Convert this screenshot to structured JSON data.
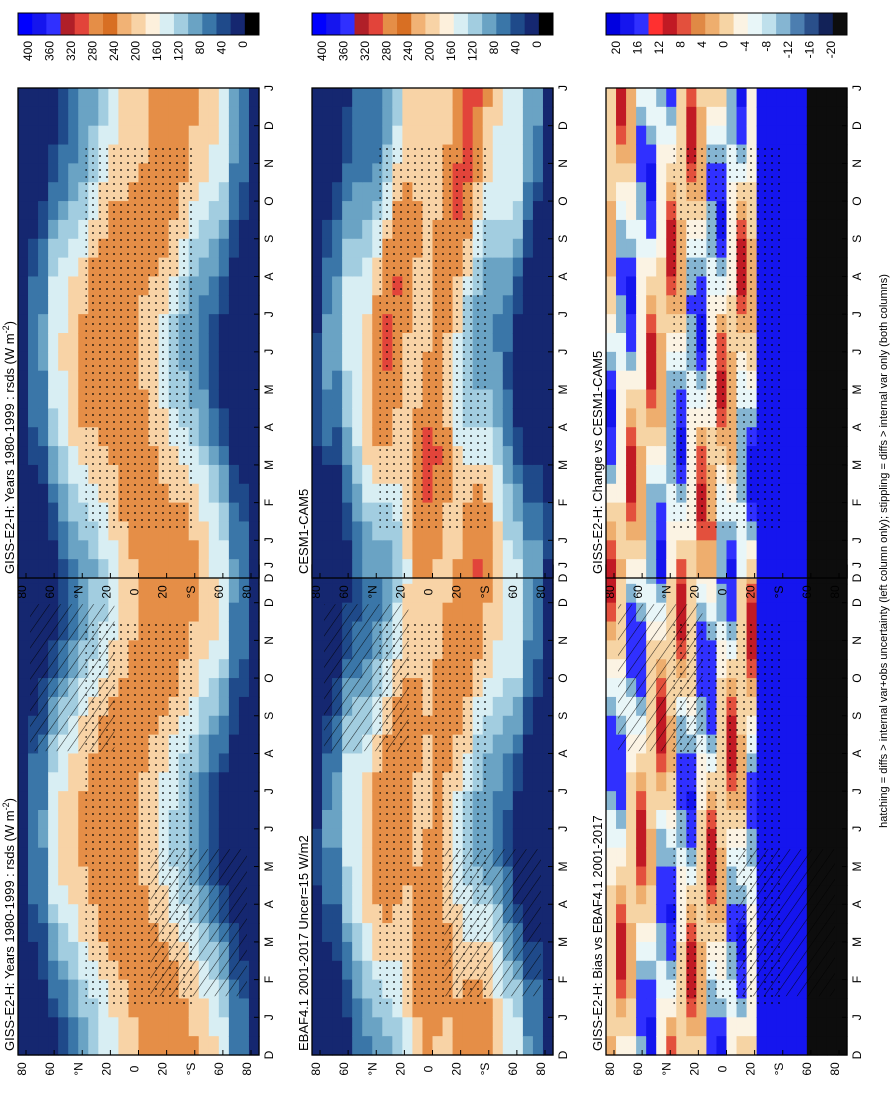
{
  "figure": {
    "footnote": "hatching = diffs > internal var+obs uncertainty (left column only); stippling = diffs > internal var only (both columns)",
    "colors": {
      "abs_scale": [
        "#f7f7f7",
        "#152770",
        "#1f4a8a",
        "#3a76a8",
        "#6aa3c4",
        "#a2cde0",
        "#d8eef3",
        "#fdf0dc",
        "#f8d3a6",
        "#f1b275",
        "#e58e47",
        "#d86f23",
        "#c9541b",
        "#e2443a",
        "#b01f28",
        "#7e0d1a",
        "#0000ff",
        "#2b2bff",
        "#1f1fcc",
        "#0d0dee"
      ],
      "diff_scale": [
        "#0d0d0d",
        "#122258",
        "#2a4f8a",
        "#4c7eb0",
        "#85b5d2",
        "#bfe0ec",
        "#e8f6f8",
        "#fbf3e3",
        "#f6d4a4",
        "#eeae6e",
        "#e08945",
        "#e3503d",
        "#c11a24",
        "#ff3030",
        "#3030ff",
        "#1515ee",
        "#0000e0"
      ]
    }
  },
  "chart_data": [
    {
      "panel": "GISS-E2-H obs-comparison column",
      "type": "heatmap",
      "title": "GISS-E2-H: Years 1980-1999 : rsds (W m-2)",
      "title_display": "GISS-E2-H: Years 1980-1999 : rsds (W m",
      "title_sup": "-2",
      "x_ticks": [
        "D",
        "J",
        "F",
        "M",
        "A",
        "M",
        "J",
        "J",
        "A",
        "S",
        "O",
        "N",
        "D",
        "J"
      ],
      "y_ticks": [
        "80",
        "60",
        "°N",
        "20",
        "0",
        "20",
        "°S",
        "60",
        "80"
      ],
      "colorbar_ticks": [
        "400",
        "360",
        "320",
        "280",
        "240",
        "200",
        "160",
        "120",
        "80",
        "40",
        "0"
      ],
      "field": "absolute",
      "hatching": true
    },
    {
      "panel": "GISS-E2-H model-comparison column",
      "type": "heatmap",
      "title": "GISS-E2-H: Years 1980-1999 : rsds (W m-2)",
      "title_display": "GISS-E2-H: Years 1980-1999 : rsds (W m",
      "title_sup": "-2",
      "x_ticks": [
        "D",
        "J",
        "F",
        "M",
        "A",
        "M",
        "J",
        "J",
        "A",
        "S",
        "O",
        "N",
        "D",
        "J"
      ],
      "y_ticks": [
        "80",
        "60",
        "°N",
        "20",
        "0",
        "20",
        "°S",
        "60",
        "80"
      ],
      "colorbar_ticks": [
        "400",
        "360",
        "320",
        "280",
        "240",
        "200",
        "160",
        "120",
        "80",
        "40",
        "0"
      ],
      "field": "absolute",
      "hatching": false
    },
    {
      "panel": "EBAF4.1 observations",
      "type": "heatmap",
      "title": "EBAF4.1 2001-2017 Uncer=15 W/m2",
      "x_ticks": [
        "D",
        "J",
        "F",
        "M",
        "A",
        "M",
        "J",
        "J",
        "A",
        "S",
        "O",
        "N",
        "D",
        "J"
      ],
      "y_ticks": [
        "80",
        "60",
        "°N",
        "20",
        "0",
        "20",
        "°S",
        "60",
        "80"
      ],
      "colorbar_ticks": [
        "400",
        "360",
        "320",
        "280",
        "240",
        "200",
        "160",
        "120",
        "80",
        "40",
        "0"
      ],
      "field": "absolute",
      "hatching": true
    },
    {
      "panel": "CESM1-CAM5",
      "type": "heatmap",
      "title": "CESM1-CAM5",
      "x_ticks": [
        "D",
        "J",
        "F",
        "M",
        "A",
        "M",
        "J",
        "J",
        "A",
        "S",
        "O",
        "N",
        "D",
        "J"
      ],
      "y_ticks": [
        "80",
        "60",
        "°N",
        "20",
        "0",
        "20",
        "°S",
        "60",
        "80"
      ],
      "colorbar_ticks": [
        "400",
        "360",
        "320",
        "280",
        "240",
        "200",
        "160",
        "120",
        "80",
        "40",
        "0"
      ],
      "field": "absolute",
      "hatching": false
    },
    {
      "panel": "Bias vs EBAF",
      "type": "heatmap",
      "title": "GISS-E2-H: Bias vs EBAF4.1 2001-2017",
      "x_ticks": [
        "D",
        "J",
        "F",
        "M",
        "A",
        "M",
        "J",
        "J",
        "A",
        "S",
        "O",
        "N",
        "D",
        "J"
      ],
      "y_ticks": [
        "80",
        "60",
        "°N",
        "20",
        "0",
        "20",
        "°S",
        "60",
        "80"
      ],
      "colorbar_ticks": [
        "20",
        "16",
        "12",
        "8",
        "4",
        "0",
        "-4",
        "-8",
        "-12",
        "-16",
        "-20"
      ],
      "field": "bias",
      "hatching": true
    },
    {
      "panel": "Change vs CESM",
      "type": "heatmap",
      "title": "GISS-E2-H: Change vs CESM1-CAM5",
      "x_ticks": [
        "D",
        "J",
        "F",
        "M",
        "A",
        "M",
        "J",
        "J",
        "A",
        "S",
        "O",
        "N",
        "D",
        "J"
      ],
      "y_ticks": [
        "80",
        "60",
        "°N",
        "20",
        "0",
        "20",
        "°S",
        "60",
        "80"
      ],
      "colorbar_ticks": [
        "20",
        "16",
        "12",
        "8",
        "4",
        "0",
        "-4",
        "-8",
        "-12",
        "-16",
        "-20"
      ],
      "field": "change",
      "hatching": false
    }
  ]
}
